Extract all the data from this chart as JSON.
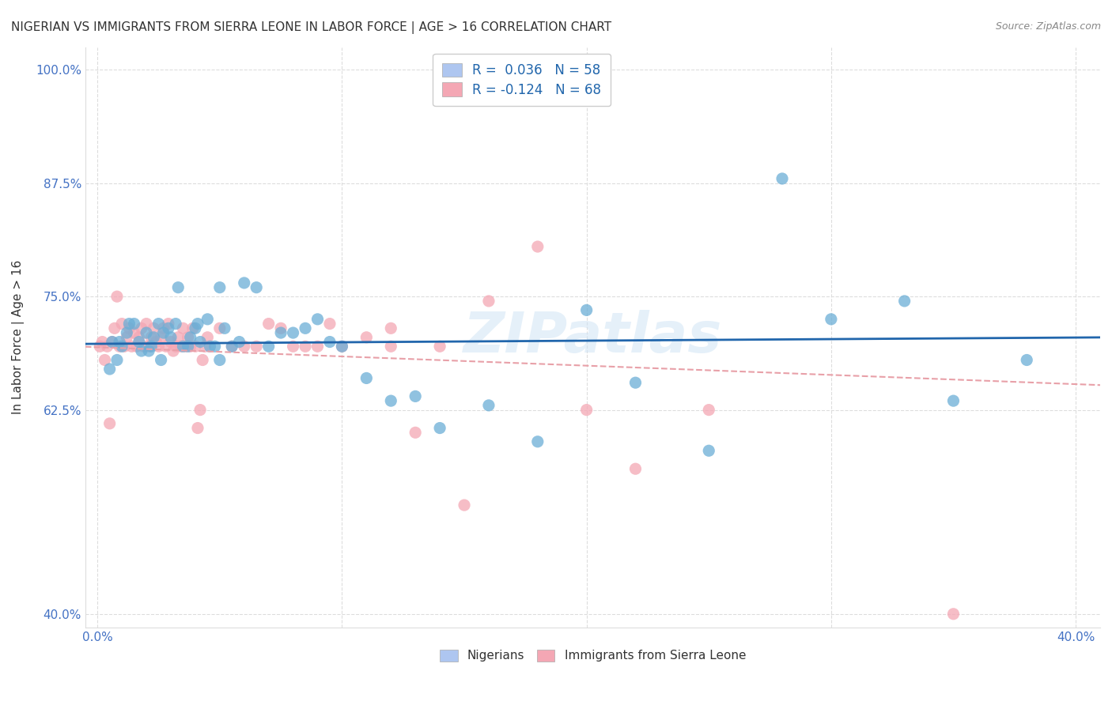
{
  "title": "NIGERIAN VS IMMIGRANTS FROM SIERRA LEONE IN LABOR FORCE | AGE > 16 CORRELATION CHART",
  "source": "Source: ZipAtlas.com",
  "ylabel": "In Labor Force | Age > 16",
  "xlabel": "",
  "watermark": "ZIPatlas",
  "xlim": [
    -0.005,
    0.41
  ],
  "ylim": [
    0.385,
    1.025
  ],
  "legend_labels": [
    "Nigerians",
    "Immigrants from Sierra Leone"
  ],
  "legend_box_colors": [
    "#aec6f0",
    "#f4a7b4"
  ],
  "R_nigerian": 0.036,
  "N_nigerian": 58,
  "R_sierraleone": -0.124,
  "N_sierraleone": 68,
  "blue_color": "#6baed6",
  "pink_color": "#f4a7b4",
  "trend_blue": "#2166ac",
  "grid_color": "#dddddd",
  "bg_color": "#ffffff",
  "title_color": "#333333",
  "axis_label_color": "#333333",
  "tick_color": "#4472c4",
  "nigerian_x": [
    0.006,
    0.008,
    0.01,
    0.012,
    0.015,
    0.018,
    0.02,
    0.022,
    0.025,
    0.027,
    0.03,
    0.032,
    0.035,
    0.038,
    0.04,
    0.042,
    0.045,
    0.048,
    0.05,
    0.052,
    0.055,
    0.058,
    0.06,
    0.065,
    0.07,
    0.075,
    0.08,
    0.085,
    0.09,
    0.095,
    0.1,
    0.11,
    0.12,
    0.13,
    0.14,
    0.16,
    0.18,
    0.2,
    0.22,
    0.25,
    0.28,
    0.3,
    0.33,
    0.35,
    0.38,
    0.005,
    0.009,
    0.013,
    0.017,
    0.021,
    0.023,
    0.026,
    0.029,
    0.033,
    0.037,
    0.041,
    0.046,
    0.05
  ],
  "nigerian_y": [
    0.7,
    0.68,
    0.695,
    0.71,
    0.72,
    0.69,
    0.71,
    0.695,
    0.72,
    0.71,
    0.705,
    0.72,
    0.695,
    0.705,
    0.715,
    0.7,
    0.725,
    0.695,
    0.68,
    0.715,
    0.695,
    0.7,
    0.765,
    0.76,
    0.695,
    0.71,
    0.71,
    0.715,
    0.725,
    0.7,
    0.695,
    0.66,
    0.635,
    0.64,
    0.605,
    0.63,
    0.59,
    0.735,
    0.655,
    0.58,
    0.88,
    0.725,
    0.745,
    0.635,
    0.68,
    0.67,
    0.7,
    0.72,
    0.7,
    0.69,
    0.705,
    0.68,
    0.715,
    0.76,
    0.695,
    0.72,
    0.695,
    0.76
  ],
  "sierraleone_x": [
    0.001,
    0.002,
    0.003,
    0.004,
    0.005,
    0.006,
    0.007,
    0.008,
    0.009,
    0.01,
    0.011,
    0.012,
    0.013,
    0.014,
    0.015,
    0.016,
    0.017,
    0.018,
    0.019,
    0.02,
    0.021,
    0.022,
    0.023,
    0.024,
    0.025,
    0.026,
    0.027,
    0.028,
    0.029,
    0.03,
    0.031,
    0.032,
    0.033,
    0.034,
    0.035,
    0.036,
    0.037,
    0.038,
    0.039,
    0.04,
    0.041,
    0.042,
    0.043,
    0.044,
    0.045,
    0.05,
    0.055,
    0.06,
    0.065,
    0.07,
    0.075,
    0.08,
    0.085,
    0.09,
    0.095,
    0.1,
    0.11,
    0.12,
    0.13,
    0.14,
    0.16,
    0.18,
    0.2,
    0.22,
    0.25,
    0.12,
    0.15,
    0.35
  ],
  "sierraleone_y": [
    0.695,
    0.7,
    0.68,
    0.695,
    0.61,
    0.7,
    0.715,
    0.75,
    0.695,
    0.72,
    0.695,
    0.705,
    0.715,
    0.695,
    0.71,
    0.695,
    0.705,
    0.715,
    0.695,
    0.72,
    0.695,
    0.705,
    0.715,
    0.7,
    0.695,
    0.705,
    0.715,
    0.695,
    0.72,
    0.7,
    0.69,
    0.695,
    0.705,
    0.695,
    0.715,
    0.695,
    0.705,
    0.695,
    0.715,
    0.695,
    0.605,
    0.625,
    0.68,
    0.695,
    0.705,
    0.715,
    0.695,
    0.695,
    0.695,
    0.72,
    0.715,
    0.695,
    0.695,
    0.695,
    0.72,
    0.695,
    0.705,
    0.715,
    0.6,
    0.695,
    0.745,
    0.805,
    0.625,
    0.56,
    0.625,
    0.695,
    0.52,
    0.4
  ]
}
